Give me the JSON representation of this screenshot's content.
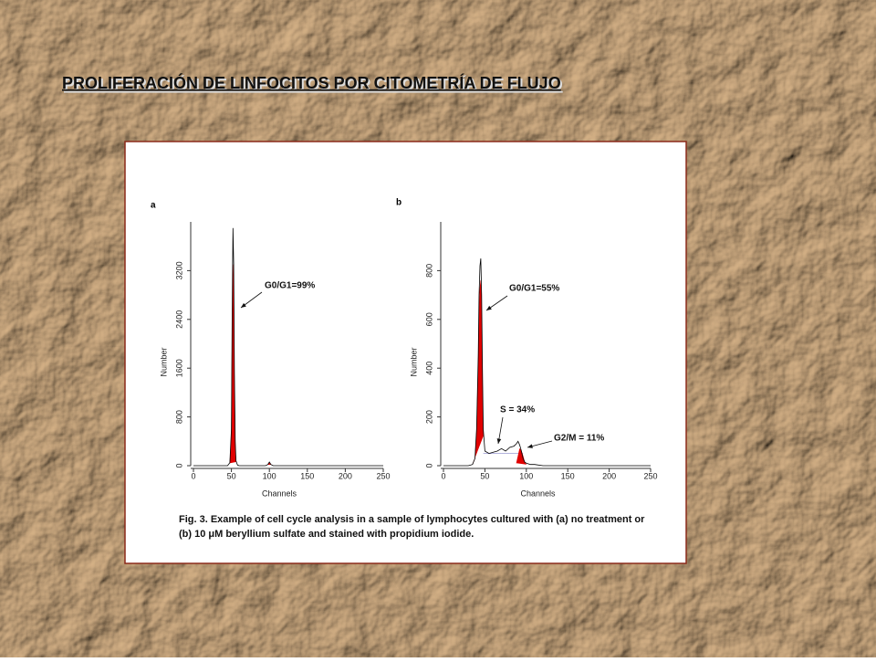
{
  "slide_title": "PROLIFERACIÓN DE LINFOCITOS POR CITOMETRÍA DE FLUJO",
  "caption": [
    "Fig. 3.  Example of cell cycle analysis in a sample of lymphocytes cultured with (a) no treatment or",
    "(b) 10 μM beryllium sulfate and stained with propidium iodide."
  ],
  "chart_data": [
    {
      "type": "area",
      "title": "a",
      "x_label": "Channels",
      "y_label": "Number",
      "xlim": [
        0,
        250
      ],
      "xticks": [
        0,
        50,
        100,
        150,
        200,
        250
      ],
      "ylim": [
        0,
        4000
      ],
      "yticks": [
        0,
        800,
        1600,
        2400,
        3200
      ],
      "x": [
        0,
        10,
        20,
        30,
        40,
        45,
        48,
        50,
        51,
        52,
        53,
        54,
        55,
        56,
        58,
        60,
        70,
        80,
        90,
        95,
        98,
        100,
        102,
        105,
        110,
        120,
        150,
        200,
        250
      ],
      "series": [
        {
          "color": "#e00000",
          "values": [
            null,
            null,
            null,
            null,
            null,
            null,
            40,
            500,
            2200,
            3300,
            3000,
            1300,
            350,
            60,
            null,
            null,
            null,
            null,
            null,
            null,
            15,
            50,
            15,
            null,
            null,
            null,
            null,
            null,
            null
          ]
        },
        {
          "color": "#000000",
          "values": [
            0,
            0,
            0,
            0,
            0,
            0,
            50,
            600,
            2400,
            3900,
            3300,
            1500,
            400,
            80,
            10,
            0,
            0,
            0,
            0,
            0,
            20,
            60,
            20,
            0,
            0,
            0,
            0,
            0,
            0
          ]
        }
      ],
      "annotations": [
        "G0/G1=99%"
      ]
    },
    {
      "type": "area",
      "title": "b",
      "x_label": "Channels",
      "y_label": "Number",
      "xlim": [
        0,
        250
      ],
      "xticks": [
        0,
        50,
        100,
        150,
        200,
        250
      ],
      "ylim": [
        0,
        1000
      ],
      "yticks": [
        0,
        200,
        400,
        600,
        800
      ],
      "x": [
        0,
        10,
        20,
        30,
        35,
        38,
        40,
        42,
        43,
        44,
        45,
        46,
        47,
        48,
        50,
        55,
        60,
        65,
        70,
        75,
        80,
        85,
        88,
        90,
        92,
        94,
        96,
        98,
        100,
        105,
        110,
        120,
        150,
        200,
        250
      ],
      "series": [
        {
          "color": "#9999dd",
          "values": [
            null,
            null,
            null,
            null,
            null,
            null,
            null,
            null,
            null,
            null,
            null,
            null,
            null,
            50,
            50,
            50,
            50,
            50,
            50,
            50,
            50,
            50,
            50,
            50,
            50,
            50,
            50,
            null,
            null,
            null,
            null,
            null,
            null,
            null,
            null
          ]
        },
        {
          "color": "#e00000",
          "values": [
            null,
            null,
            null,
            null,
            5,
            30,
            140,
            420,
            650,
            730,
            760,
            600,
            350,
            120,
            null,
            null,
            null,
            null,
            null,
            null,
            null,
            null,
            null,
            null,
            null,
            null,
            null,
            null,
            null,
            null,
            null,
            null,
            null,
            null,
            null
          ]
        },
        {
          "color": "#e00000",
          "values": [
            null,
            null,
            null,
            null,
            null,
            null,
            null,
            null,
            null,
            null,
            null,
            null,
            null,
            null,
            null,
            null,
            null,
            null,
            null,
            null,
            null,
            null,
            10,
            40,
            70,
            60,
            40,
            15,
            5,
            null,
            null,
            null,
            null,
            null,
            null
          ]
        },
        {
          "color": "#000000",
          "values": [
            0,
            0,
            0,
            0,
            5,
            30,
            150,
            450,
            700,
            820,
            850,
            700,
            400,
            150,
            60,
            50,
            55,
            60,
            70,
            60,
            75,
            80,
            90,
            100,
            85,
            60,
            30,
            15,
            10,
            5,
            5,
            0,
            0,
            0,
            0
          ]
        }
      ],
      "annotations": [
        "G0/G1=55%",
        "S = 34%",
        "G2/M = 11%"
      ]
    }
  ]
}
